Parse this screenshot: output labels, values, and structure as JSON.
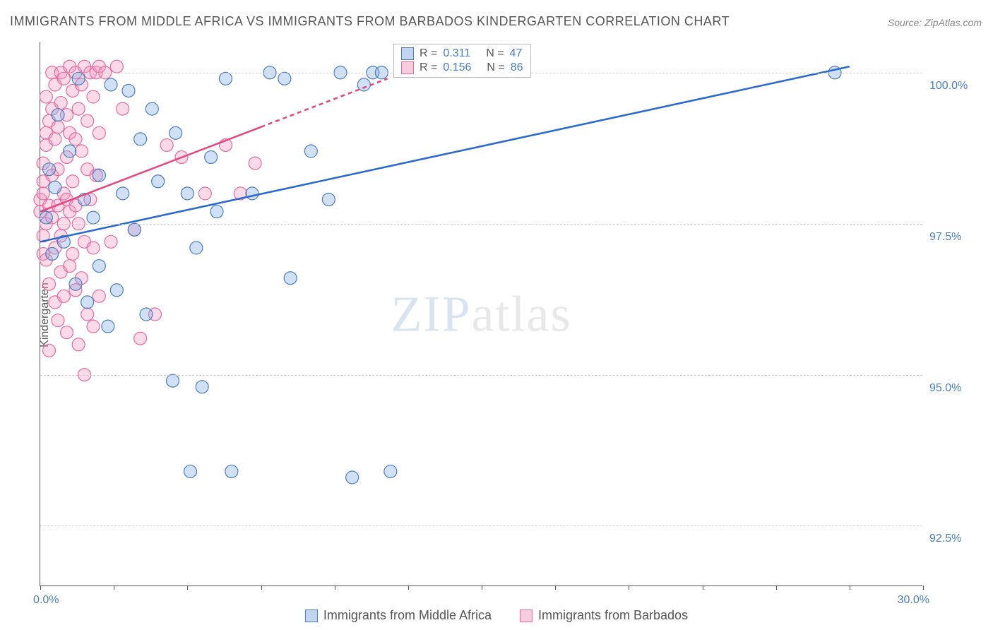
{
  "title": "IMMIGRANTS FROM MIDDLE AFRICA VS IMMIGRANTS FROM BARBADOS KINDERGARTEN CORRELATION CHART",
  "source": "Source: ZipAtlas.com",
  "ylabel": "Kindergarten",
  "watermark_zip": "ZIP",
  "watermark_atlas": "atlas",
  "chart": {
    "type": "scatter",
    "xlim": [
      0,
      30
    ],
    "ylim": [
      91.5,
      100.5
    ],
    "yticks": [
      {
        "v": 100.0,
        "label": "100.0%"
      },
      {
        "v": 97.5,
        "label": "97.5%"
      },
      {
        "v": 95.0,
        "label": "95.0%"
      },
      {
        "v": 92.5,
        "label": "92.5%"
      }
    ],
    "xticks_minor": [
      0,
      2.5,
      5,
      7.5,
      10,
      12.5,
      15,
      17.5,
      20,
      22.5,
      25,
      27.5,
      30
    ],
    "xlabel_left": {
      "v": 0,
      "label": "0.0%"
    },
    "xlabel_right": {
      "v": 30,
      "label": "30.0%"
    },
    "marker_radius": 9,
    "marker_stroke_width": 1.2,
    "line_width": 2.5,
    "series": {
      "blue": {
        "color_fill": "rgba(120,165,225,0.35)",
        "color_stroke": "#4a7ebb",
        "line_color": "#2a6ad0",
        "trend": {
          "x1": 0,
          "y1": 97.2,
          "x2": 27.5,
          "y2": 100.1
        },
        "points": [
          [
            0.2,
            97.6
          ],
          [
            0.3,
            98.4
          ],
          [
            0.4,
            97.0
          ],
          [
            0.5,
            98.1
          ],
          [
            0.6,
            99.3
          ],
          [
            0.8,
            97.2
          ],
          [
            1.0,
            98.7
          ],
          [
            1.2,
            96.5
          ],
          [
            1.3,
            99.9
          ],
          [
            1.5,
            97.9
          ],
          [
            1.6,
            96.2
          ],
          [
            1.8,
            97.6
          ],
          [
            2.0,
            98.3
          ],
          [
            2.0,
            96.8
          ],
          [
            2.3,
            95.8
          ],
          [
            2.4,
            99.8
          ],
          [
            2.6,
            96.4
          ],
          [
            2.8,
            98.0
          ],
          [
            3.0,
            99.7
          ],
          [
            3.2,
            97.4
          ],
          [
            3.4,
            98.9
          ],
          [
            3.6,
            96.0
          ],
          [
            3.8,
            99.4
          ],
          [
            4.0,
            98.2
          ],
          [
            4.5,
            94.9
          ],
          [
            4.6,
            99.0
          ],
          [
            5.0,
            98.0
          ],
          [
            5.1,
            93.4
          ],
          [
            5.3,
            97.1
          ],
          [
            5.5,
            94.8
          ],
          [
            5.8,
            98.6
          ],
          [
            6.0,
            97.7
          ],
          [
            6.3,
            99.9
          ],
          [
            6.5,
            93.4
          ],
          [
            7.2,
            98.0
          ],
          [
            7.8,
            100.0
          ],
          [
            8.3,
            99.9
          ],
          [
            8.5,
            96.6
          ],
          [
            9.2,
            98.7
          ],
          [
            9.8,
            97.9
          ],
          [
            10.2,
            100.0
          ],
          [
            10.6,
            93.3
          ],
          [
            11.0,
            99.8
          ],
          [
            11.3,
            100.0
          ],
          [
            11.6,
            100.0
          ],
          [
            11.9,
            93.4
          ],
          [
            27.0,
            100.0
          ]
        ]
      },
      "pink": {
        "color_fill": "rgba(245,150,190,0.35)",
        "color_stroke": "#e86aa0",
        "line_color": "#e8447e",
        "trend_solid": {
          "x1": 0,
          "y1": 97.7,
          "x2": 7.5,
          "y2": 99.1
        },
        "trend_dash": {
          "x1": 7.5,
          "y1": 99.1,
          "x2": 11.8,
          "y2": 99.9
        },
        "points": [
          [
            0.0,
            97.7
          ],
          [
            0.0,
            97.9
          ],
          [
            0.1,
            98.0
          ],
          [
            0.1,
            98.2
          ],
          [
            0.1,
            97.3
          ],
          [
            0.1,
            97.0
          ],
          [
            0.1,
            98.5
          ],
          [
            0.2,
            99.0
          ],
          [
            0.2,
            97.5
          ],
          [
            0.2,
            96.9
          ],
          [
            0.2,
            98.8
          ],
          [
            0.2,
            99.6
          ],
          [
            0.3,
            97.8
          ],
          [
            0.3,
            96.5
          ],
          [
            0.3,
            99.2
          ],
          [
            0.3,
            95.4
          ],
          [
            0.4,
            97.6
          ],
          [
            0.4,
            98.3
          ],
          [
            0.4,
            100.0
          ],
          [
            0.4,
            99.4
          ],
          [
            0.5,
            97.1
          ],
          [
            0.5,
            96.2
          ],
          [
            0.5,
            98.9
          ],
          [
            0.5,
            99.8
          ],
          [
            0.6,
            97.8
          ],
          [
            0.6,
            95.9
          ],
          [
            0.6,
            99.1
          ],
          [
            0.6,
            98.4
          ],
          [
            0.7,
            97.3
          ],
          [
            0.7,
            100.0
          ],
          [
            0.7,
            96.7
          ],
          [
            0.7,
            99.5
          ],
          [
            0.8,
            98.0
          ],
          [
            0.8,
            97.5
          ],
          [
            0.8,
            96.3
          ],
          [
            0.8,
            99.9
          ],
          [
            0.9,
            97.9
          ],
          [
            0.9,
            98.6
          ],
          [
            0.9,
            99.3
          ],
          [
            0.9,
            95.7
          ],
          [
            1.0,
            97.7
          ],
          [
            1.0,
            99.0
          ],
          [
            1.0,
            96.8
          ],
          [
            1.0,
            100.1
          ],
          [
            1.1,
            98.2
          ],
          [
            1.1,
            97.0
          ],
          [
            1.1,
            99.7
          ],
          [
            1.2,
            97.8
          ],
          [
            1.2,
            96.4
          ],
          [
            1.2,
            98.9
          ],
          [
            1.2,
            100.0
          ],
          [
            1.3,
            95.5
          ],
          [
            1.3,
            99.4
          ],
          [
            1.3,
            97.5
          ],
          [
            1.4,
            96.6
          ],
          [
            1.4,
            98.7
          ],
          [
            1.4,
            99.8
          ],
          [
            1.5,
            97.2
          ],
          [
            1.5,
            100.1
          ],
          [
            1.5,
            95.0
          ],
          [
            1.6,
            98.4
          ],
          [
            1.6,
            99.2
          ],
          [
            1.6,
            96.0
          ],
          [
            1.7,
            100.0
          ],
          [
            1.7,
            97.9
          ],
          [
            1.8,
            95.8
          ],
          [
            1.8,
            99.6
          ],
          [
            1.8,
            97.1
          ],
          [
            1.9,
            100.0
          ],
          [
            1.9,
            98.3
          ],
          [
            2.0,
            100.1
          ],
          [
            2.0,
            96.3
          ],
          [
            2.0,
            99.0
          ],
          [
            2.2,
            100.0
          ],
          [
            2.4,
            97.2
          ],
          [
            2.6,
            100.1
          ],
          [
            2.8,
            99.4
          ],
          [
            3.2,
            97.4
          ],
          [
            3.4,
            95.6
          ],
          [
            3.9,
            96.0
          ],
          [
            4.3,
            98.8
          ],
          [
            4.8,
            98.6
          ],
          [
            5.6,
            98.0
          ],
          [
            6.3,
            98.8
          ],
          [
            6.8,
            98.0
          ],
          [
            7.3,
            98.5
          ]
        ]
      }
    }
  },
  "legend_top": {
    "rows": [
      {
        "swatch": "blue",
        "r_label": "R =",
        "r_val": "0.311",
        "n_label": "N =",
        "n_val": "47"
      },
      {
        "swatch": "pink",
        "r_label": "R =",
        "r_val": "0.156",
        "n_label": "N =",
        "n_val": "86"
      }
    ]
  },
  "legend_bottom": {
    "items": [
      {
        "swatch": "blue",
        "label": "Immigrants from Middle Africa"
      },
      {
        "swatch": "pink",
        "label": "Immigrants from Barbados"
      }
    ]
  }
}
